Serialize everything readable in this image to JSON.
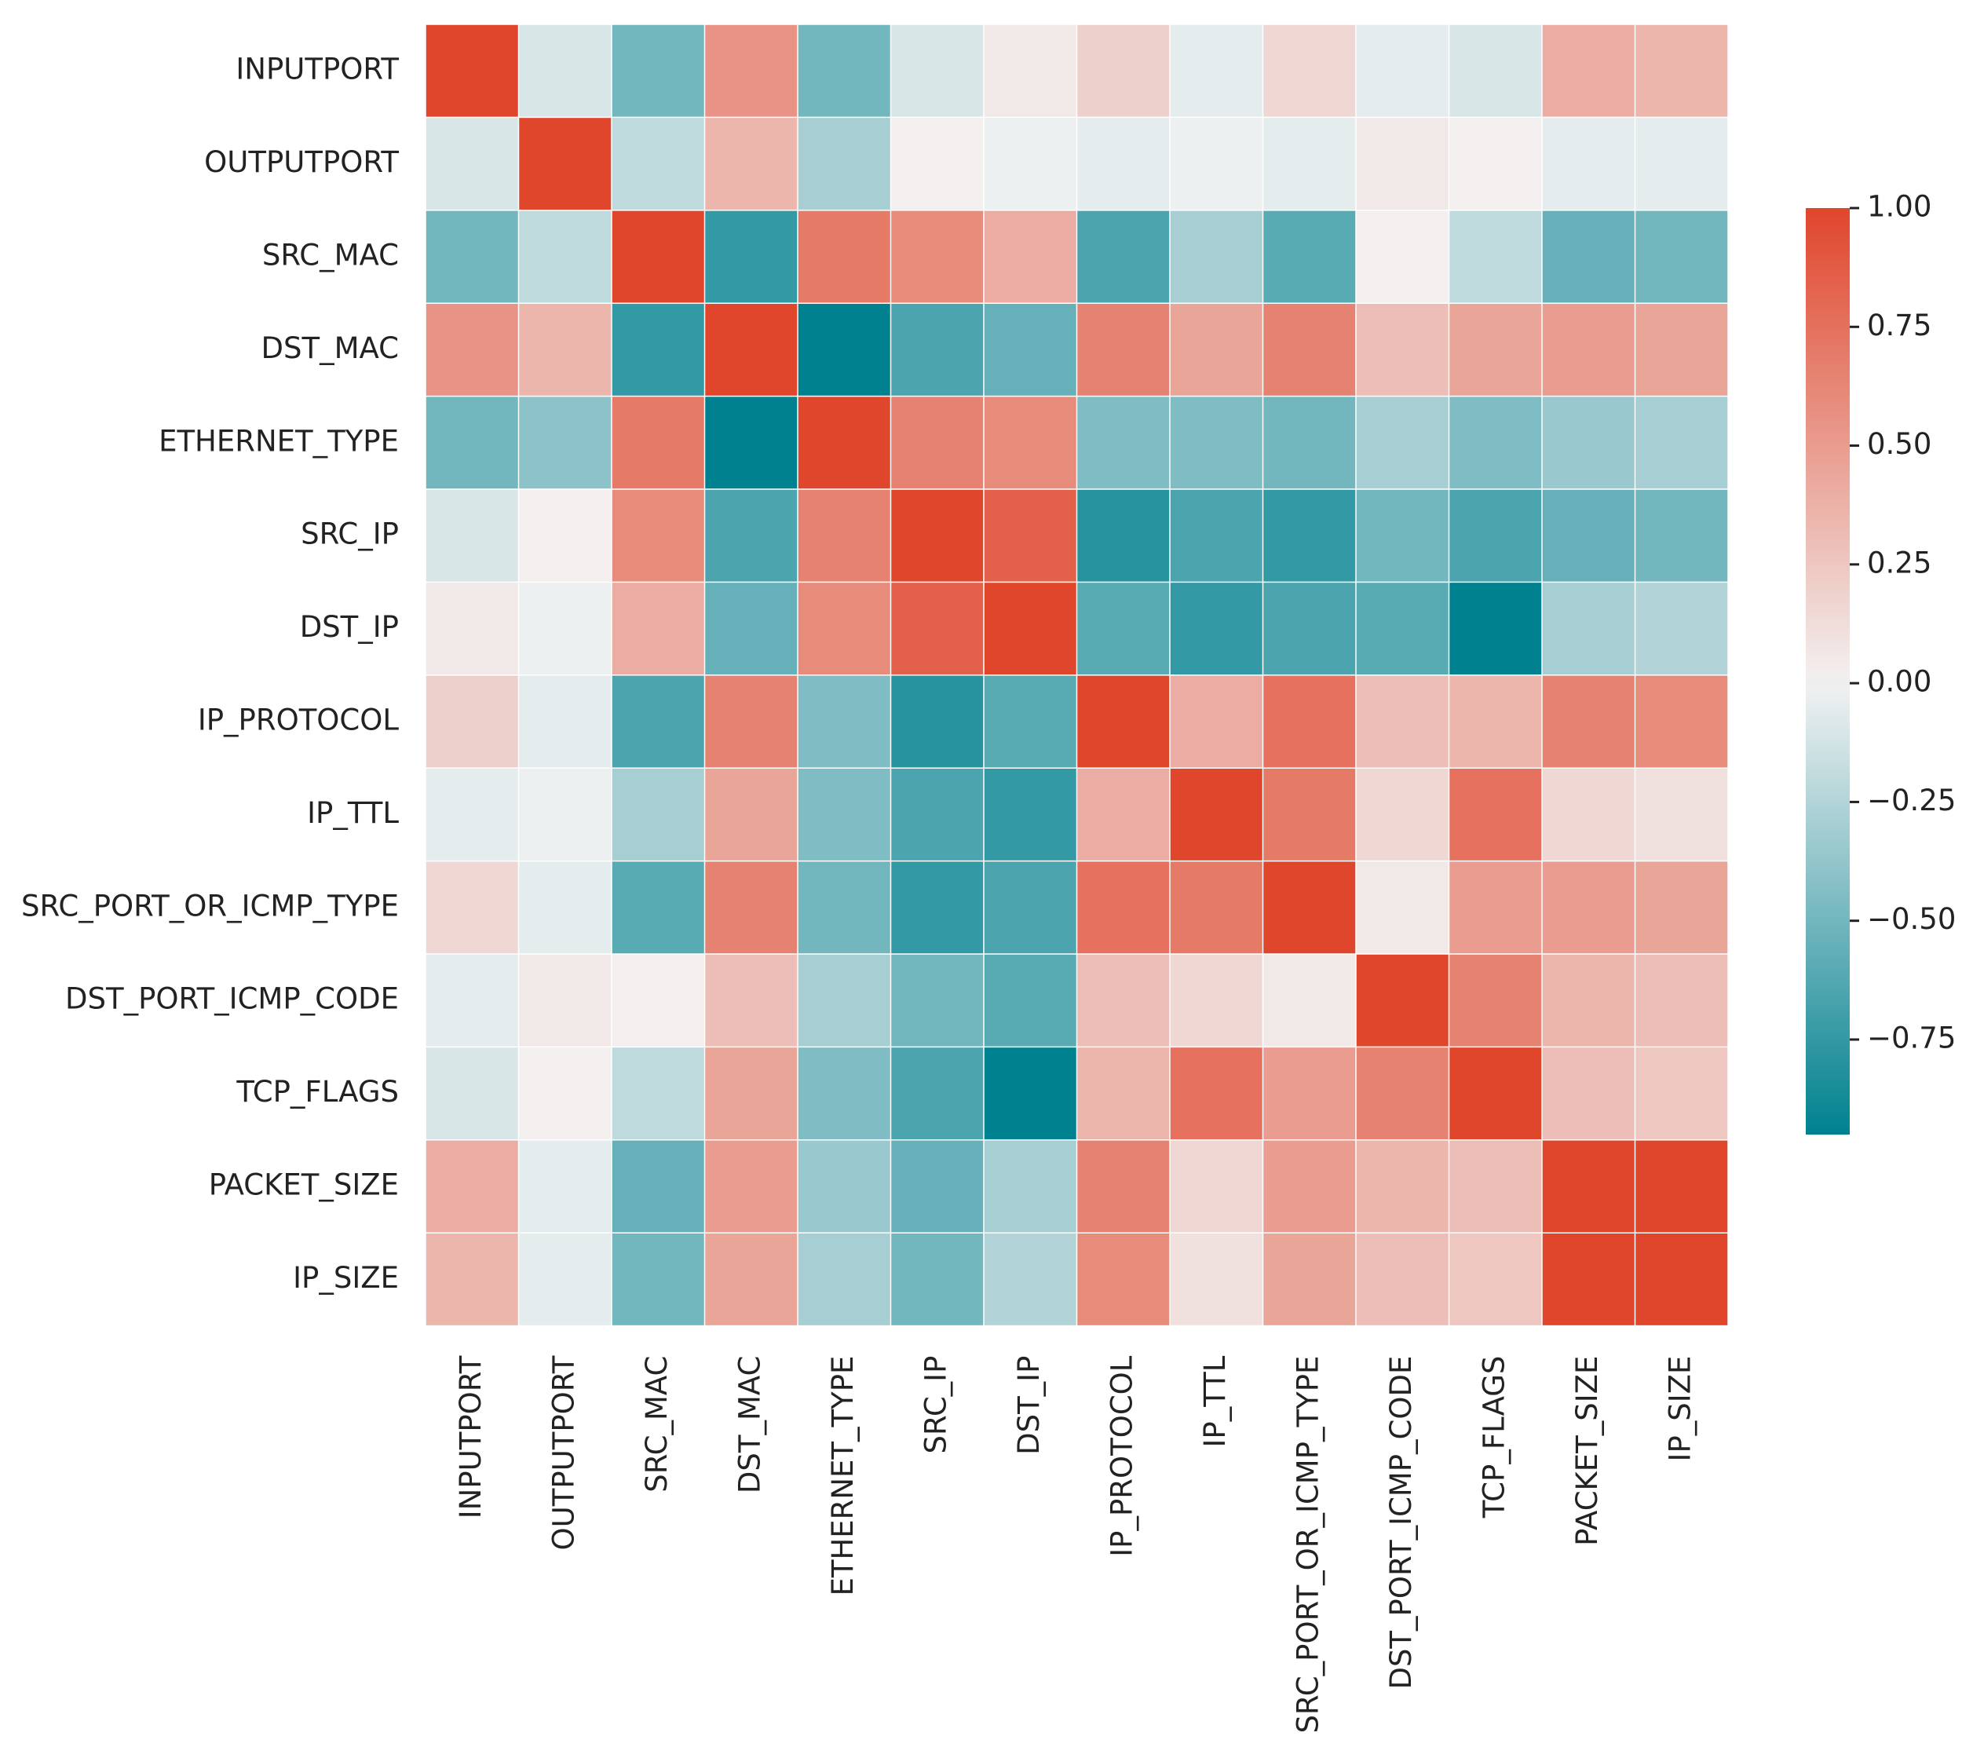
{
  "chart_data": {
    "type": "heatmap",
    "title": "",
    "xlabel": "",
    "ylabel": "",
    "row_labels": [
      "INPUTPORT",
      "OUTPUTPORT",
      "SRC_MAC",
      "DST_MAC",
      "ETHERNET_TYPE",
      "SRC_IP",
      "DST_IP",
      "IP_PROTOCOL",
      "IP_TTL",
      "SRC_PORT_OR_ICMP_TYPE",
      "DST_PORT_ICMP_CODE",
      "TCP_FLAGS",
      "PACKET_SIZE",
      "IP_SIZE"
    ],
    "col_labels": [
      "INPUTPORT",
      "OUTPUTPORT",
      "SRC_MAC",
      "DST_MAC",
      "ETHERNET_TYPE",
      "SRC_IP",
      "DST_IP",
      "IP_PROTOCOL",
      "IP_TTL",
      "SRC_PORT_OR_ICMP_TYPE",
      "DST_PORT_ICMP_CODE",
      "TCP_FLAGS",
      "PACKET_SIZE",
      "IP_SIZE"
    ],
    "values": [
      [
        1.0,
        -0.1,
        -0.5,
        0.55,
        -0.5,
        -0.1,
        0.05,
        0.2,
        -0.05,
        0.15,
        -0.05,
        -0.1,
        0.4,
        0.35
      ],
      [
        -0.1,
        1.0,
        -0.2,
        0.35,
        -0.3,
        0.02,
        -0.02,
        -0.05,
        -0.02,
        -0.05,
        0.05,
        0.02,
        -0.05,
        -0.05
      ],
      [
        -0.5,
        -0.2,
        1.0,
        -0.75,
        0.7,
        0.6,
        0.4,
        -0.65,
        -0.3,
        -0.6,
        0.02,
        -0.2,
        -0.55,
        -0.5
      ],
      [
        0.55,
        0.35,
        -0.75,
        1.0,
        -0.95,
        -0.65,
        -0.55,
        0.65,
        0.45,
        0.65,
        0.3,
        0.45,
        0.5,
        0.45
      ],
      [
        -0.5,
        -0.4,
        0.7,
        -0.95,
        1.0,
        0.65,
        0.6,
        -0.45,
        -0.45,
        -0.5,
        -0.3,
        -0.45,
        -0.35,
        -0.3
      ],
      [
        -0.1,
        0.02,
        0.6,
        -0.65,
        0.65,
        1.0,
        0.85,
        -0.8,
        -0.65,
        -0.75,
        -0.5,
        -0.65,
        -0.55,
        -0.5
      ],
      [
        0.05,
        -0.02,
        0.4,
        -0.55,
        0.6,
        0.85,
        1.0,
        -0.6,
        -0.75,
        -0.65,
        -0.6,
        -0.95,
        -0.3,
        -0.25
      ],
      [
        0.2,
        -0.05,
        -0.65,
        0.65,
        -0.45,
        -0.8,
        -0.6,
        1.0,
        0.4,
        0.75,
        0.3,
        0.35,
        0.65,
        0.6
      ],
      [
        -0.05,
        -0.02,
        -0.3,
        0.45,
        -0.45,
        -0.65,
        -0.75,
        0.4,
        1.0,
        0.7,
        0.15,
        0.75,
        0.15,
        0.1
      ],
      [
        0.15,
        -0.05,
        -0.6,
        0.65,
        -0.5,
        -0.75,
        -0.65,
        0.75,
        0.7,
        1.0,
        0.05,
        0.5,
        0.5,
        0.45
      ],
      [
        -0.05,
        0.05,
        0.02,
        0.3,
        -0.3,
        -0.5,
        -0.6,
        0.3,
        0.15,
        0.05,
        1.0,
        0.65,
        0.35,
        0.3
      ],
      [
        -0.1,
        0.02,
        -0.2,
        0.45,
        -0.45,
        -0.65,
        -0.95,
        0.35,
        0.75,
        0.5,
        0.65,
        1.0,
        0.3,
        0.25
      ],
      [
        0.4,
        -0.05,
        -0.55,
        0.5,
        -0.35,
        -0.55,
        -0.3,
        0.65,
        0.15,
        0.5,
        0.35,
        0.3,
        1.0,
        1.0
      ],
      [
        0.35,
        -0.05,
        -0.5,
        0.45,
        -0.3,
        -0.5,
        -0.25,
        0.6,
        0.1,
        0.45,
        0.3,
        0.25,
        1.0,
        1.0
      ]
    ],
    "vmin": -0.95,
    "vmax": 1.0,
    "colormap": {
      "negative_color": "#00818f",
      "center_color": "#f2f2f2",
      "positive_color": "#e0462c"
    },
    "colorbar": {
      "ticks": [
        1.0,
        0.75,
        0.5,
        0.25,
        0.0,
        -0.25,
        -0.5,
        -0.75
      ],
      "tick_labels": [
        "1.00",
        "0.75",
        "0.50",
        "0.25",
        "0.00",
        "−0.25",
        "−0.50",
        "−0.75"
      ],
      "placement": "right"
    },
    "grid": false
  }
}
